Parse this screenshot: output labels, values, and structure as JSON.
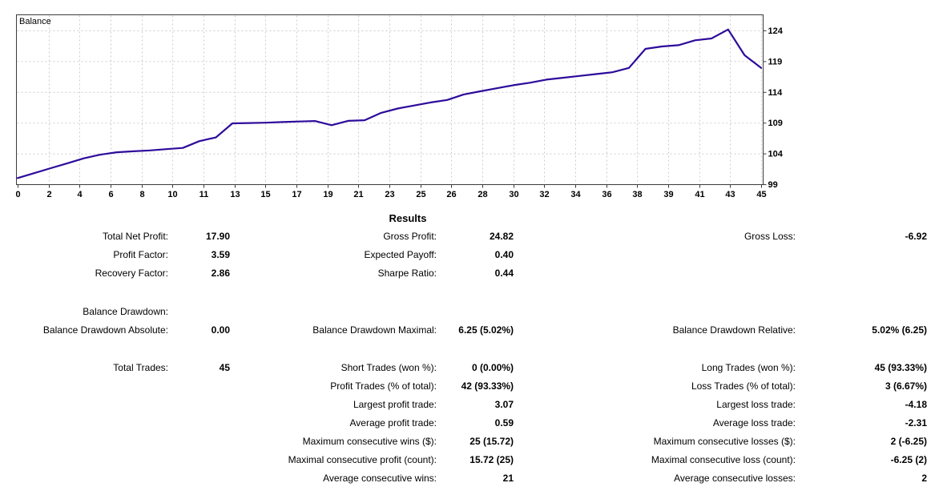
{
  "chart_data": {
    "type": "line",
    "title": "Balance",
    "xlabel": "",
    "ylabel": "",
    "xlim": [
      0,
      45
    ],
    "ylim": [
      99,
      126.6
    ],
    "grid": "dashed",
    "legend_position": "top-left-inside",
    "x_tick_labels": [
      "0",
      "2",
      "4",
      "6",
      "8",
      "10",
      "11",
      "13",
      "15",
      "17",
      "19",
      "21",
      "23",
      "25",
      "26",
      "28",
      "30",
      "32",
      "34",
      "36",
      "38",
      "39",
      "41",
      "43",
      "45"
    ],
    "y_ticks": [
      99,
      104,
      109,
      114,
      119,
      124
    ],
    "series": [
      {
        "name": "Balance",
        "x_unit": "trade number",
        "values": [
          100.0,
          100.8,
          101.6,
          102.4,
          103.2,
          103.8,
          104.2,
          104.35,
          104.5,
          104.7,
          104.9,
          106.0,
          106.6,
          108.9,
          108.95,
          109.0,
          109.1,
          109.2,
          109.27,
          108.6,
          109.3,
          109.4,
          110.6,
          111.3,
          111.8,
          112.3,
          112.7,
          113.6,
          114.1,
          114.6,
          115.1,
          115.5,
          116.0,
          116.3,
          116.6,
          116.9,
          117.2,
          117.9,
          121.0,
          121.4,
          121.6,
          122.4,
          122.7,
          124.15,
          119.97,
          117.9
        ]
      }
    ],
    "colors": {
      "line": "#2d0b9b",
      "grid": "#cccccc",
      "border": "#3b3b3b",
      "text": "#000000",
      "background": "#ffffff"
    }
  },
  "results": {
    "title": "Results",
    "sections": [
      {
        "rows": [
          [
            {
              "label": "Total Net Profit:",
              "value": "17.90"
            },
            {
              "label": "Gross Profit:",
              "value": "24.82"
            },
            {
              "label": "Gross Loss:",
              "value": "-6.92"
            }
          ],
          [
            {
              "label": "Profit Factor:",
              "value": "3.59"
            },
            {
              "label": "Expected Payoff:",
              "value": "0.40"
            },
            null
          ],
          [
            {
              "label": "Recovery Factor:",
              "value": "2.86"
            },
            {
              "label": "Sharpe Ratio:",
              "value": "0.44"
            },
            null
          ]
        ]
      },
      {
        "rows": [
          [
            {
              "label": "Balance Drawdown:",
              "value": ""
            },
            null,
            null
          ],
          [
            {
              "label": "Balance Drawdown Absolute:",
              "value": "0.00"
            },
            {
              "label": "Balance Drawdown Maximal:",
              "value": "6.25 (5.02%)"
            },
            {
              "label": "Balance Drawdown Relative:",
              "value": "5.02% (6.25)"
            }
          ]
        ]
      },
      {
        "rows": [
          [
            {
              "label": "Total Trades:",
              "value": "45"
            },
            {
              "label": "Short Trades (won %):",
              "value": "0 (0.00%)"
            },
            {
              "label": "Long Trades (won %):",
              "value": "45 (93.33%)"
            }
          ],
          [
            null,
            {
              "label": "Profit Trades (% of total):",
              "value": "42 (93.33%)"
            },
            {
              "label": "Loss Trades (% of total):",
              "value": "3 (6.67%)"
            }
          ],
          [
            null,
            {
              "label": "Largest profit trade:",
              "value": "3.07"
            },
            {
              "label": "Largest loss trade:",
              "value": "-4.18"
            }
          ],
          [
            null,
            {
              "label": "Average profit trade:",
              "value": "0.59"
            },
            {
              "label": "Average loss trade:",
              "value": "-2.31"
            }
          ],
          [
            null,
            {
              "label": "Maximum consecutive wins ($):",
              "value": "25 (15.72)"
            },
            {
              "label": "Maximum consecutive losses ($):",
              "value": "2 (-6.25)"
            }
          ],
          [
            null,
            {
              "label": "Maximal consecutive profit (count):",
              "value": "15.72 (25)"
            },
            {
              "label": "Maximal consecutive loss (count):",
              "value": "-6.25 (2)"
            }
          ],
          [
            null,
            {
              "label": "Average consecutive wins:",
              "value": "21"
            },
            {
              "label": "Average consecutive losses:",
              "value": "2"
            }
          ]
        ]
      }
    ]
  }
}
